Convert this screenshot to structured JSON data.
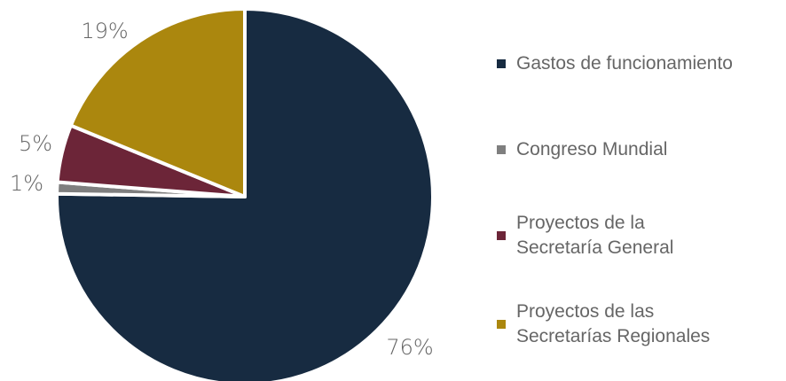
{
  "chart_data": {
    "type": "pie",
    "categories": [
      "Gastos de funcionamiento",
      "Congreso Mundial",
      "Proyectos de la Secretaría General",
      "Proyectos de las Secretarías Regionales"
    ],
    "values": [
      76,
      1,
      5,
      19
    ],
    "value_labels": [
      "76%",
      "1%",
      "5%",
      "19%"
    ],
    "colors": [
      "#172b41",
      "#7f7f7f",
      "#6c2538",
      "#ab870e"
    ],
    "start_angle": "12 o'clock, clockwise",
    "legend_position": "right",
    "legend_items": [
      {
        "label_line1": "Gastos de funcionamiento",
        "label_line2": "",
        "color": "#172b41"
      },
      {
        "label_line1": "Congreso Mundial",
        "label_line2": "",
        "color": "#7f7f7f"
      },
      {
        "label_line1": "Proyectos de la",
        "label_line2": "Secretaría General",
        "color": "#6c2538"
      },
      {
        "label_line1": "Proyectos de las",
        "label_line2": "Secretarías Regionales",
        "color": "#ab870e"
      }
    ]
  }
}
